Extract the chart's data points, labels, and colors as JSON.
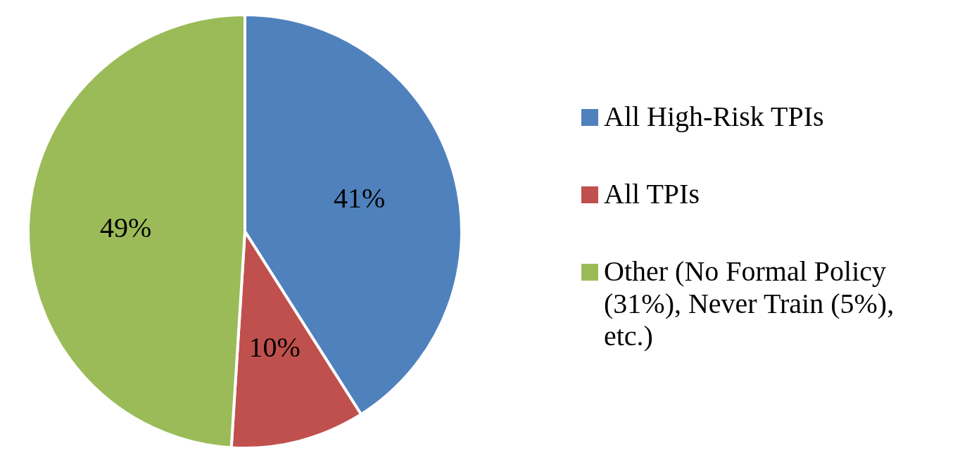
{
  "chart_data": {
    "type": "pie",
    "categories": [
      "All High-Risk TPIs",
      "All TPIs",
      "Other (No Formal Policy (31%), Never Train (5%), etc.)"
    ],
    "values": [
      41,
      10,
      49
    ],
    "colors": [
      "#4f81bd",
      "#c0504d",
      "#9bbb59"
    ],
    "value_labels": [
      "41%",
      "10%",
      "49%"
    ],
    "legend": "right"
  }
}
